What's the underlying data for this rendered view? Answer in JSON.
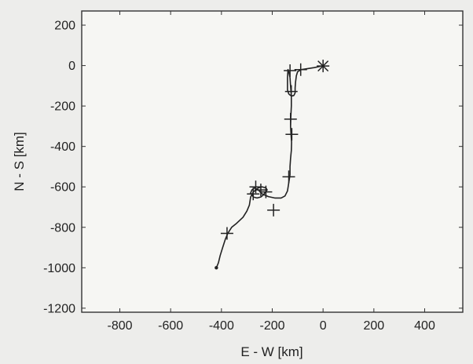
{
  "chart_data": {
    "type": "line",
    "title": "",
    "xlabel": "E - W [km]",
    "ylabel": "N - S [km]",
    "xlim": [
      -950,
      550
    ],
    "ylim": [
      -1220,
      270
    ],
    "xticks": [
      -800,
      -600,
      -400,
      -200,
      0,
      200,
      400
    ],
    "yticks": [
      200,
      0,
      -200,
      -400,
      -600,
      -800,
      -1000,
      -1200
    ],
    "grid": false,
    "colors": {
      "line": "#222222",
      "axes": "#333333",
      "background": "#f6f6f3"
    },
    "series": [
      {
        "x": [
          0,
          -15,
          -35,
          -60,
          -85,
          -100,
          -105,
          -108,
          -110,
          -110,
          -115,
          -120,
          -128,
          -135,
          -140,
          -140,
          -138,
          -135,
          -130,
          -128,
          -125,
          -125,
          -127,
          -128,
          -126,
          -124,
          -125,
          -128,
          -130,
          -130,
          -135,
          -140,
          -150,
          -165,
          -190,
          -215,
          -240,
          -255,
          -270,
          -280,
          -285,
          -275,
          -260,
          -245,
          -235,
          -228,
          -220,
          -225,
          -240,
          -255,
          -265,
          -275,
          -285,
          -290,
          -300,
          -315,
          -340,
          -360,
          -375,
          -385,
          -395,
          -405,
          -412,
          -420
        ],
        "y": [
          0,
          -5,
          -10,
          -15,
          -20,
          -30,
          -50,
          -80,
          -110,
          -135,
          -148,
          -150,
          -148,
          -140,
          -120,
          -60,
          -20,
          -30,
          -60,
          -100,
          -150,
          -200,
          -260,
          -300,
          -340,
          -380,
          -420,
          -460,
          -500,
          -540,
          -580,
          -620,
          -645,
          -655,
          -655,
          -648,
          -635,
          -615,
          -605,
          -615,
          -630,
          -650,
          -655,
          -650,
          -640,
          -628,
          -615,
          -605,
          -600,
          -605,
          -615,
          -625,
          -650,
          -690,
          -720,
          -750,
          -780,
          -800,
          -830,
          -860,
          -900,
          -940,
          -975,
          -1000
        ]
      }
    ],
    "markers": [
      {
        "symbol": "*",
        "x": 0,
        "y": -2
      },
      {
        "symbol": "+",
        "x": -88,
        "y": -20
      },
      {
        "symbol": "+",
        "x": -130,
        "y": -25
      },
      {
        "symbol": "+",
        "x": -125,
        "y": -128
      },
      {
        "symbol": "+",
        "x": -128,
        "y": -265
      },
      {
        "symbol": "+",
        "x": -123,
        "y": -340
      },
      {
        "symbol": "+",
        "x": -135,
        "y": -550
      },
      {
        "symbol": "+",
        "x": -265,
        "y": -600
      },
      {
        "symbol": "+",
        "x": -275,
        "y": -635
      },
      {
        "symbol": "+",
        "x": -245,
        "y": -615
      },
      {
        "symbol": "+",
        "x": -225,
        "y": -625
      },
      {
        "symbol": "+",
        "x": -195,
        "y": -715
      },
      {
        "symbol": "+",
        "x": -378,
        "y": -830
      }
    ]
  }
}
